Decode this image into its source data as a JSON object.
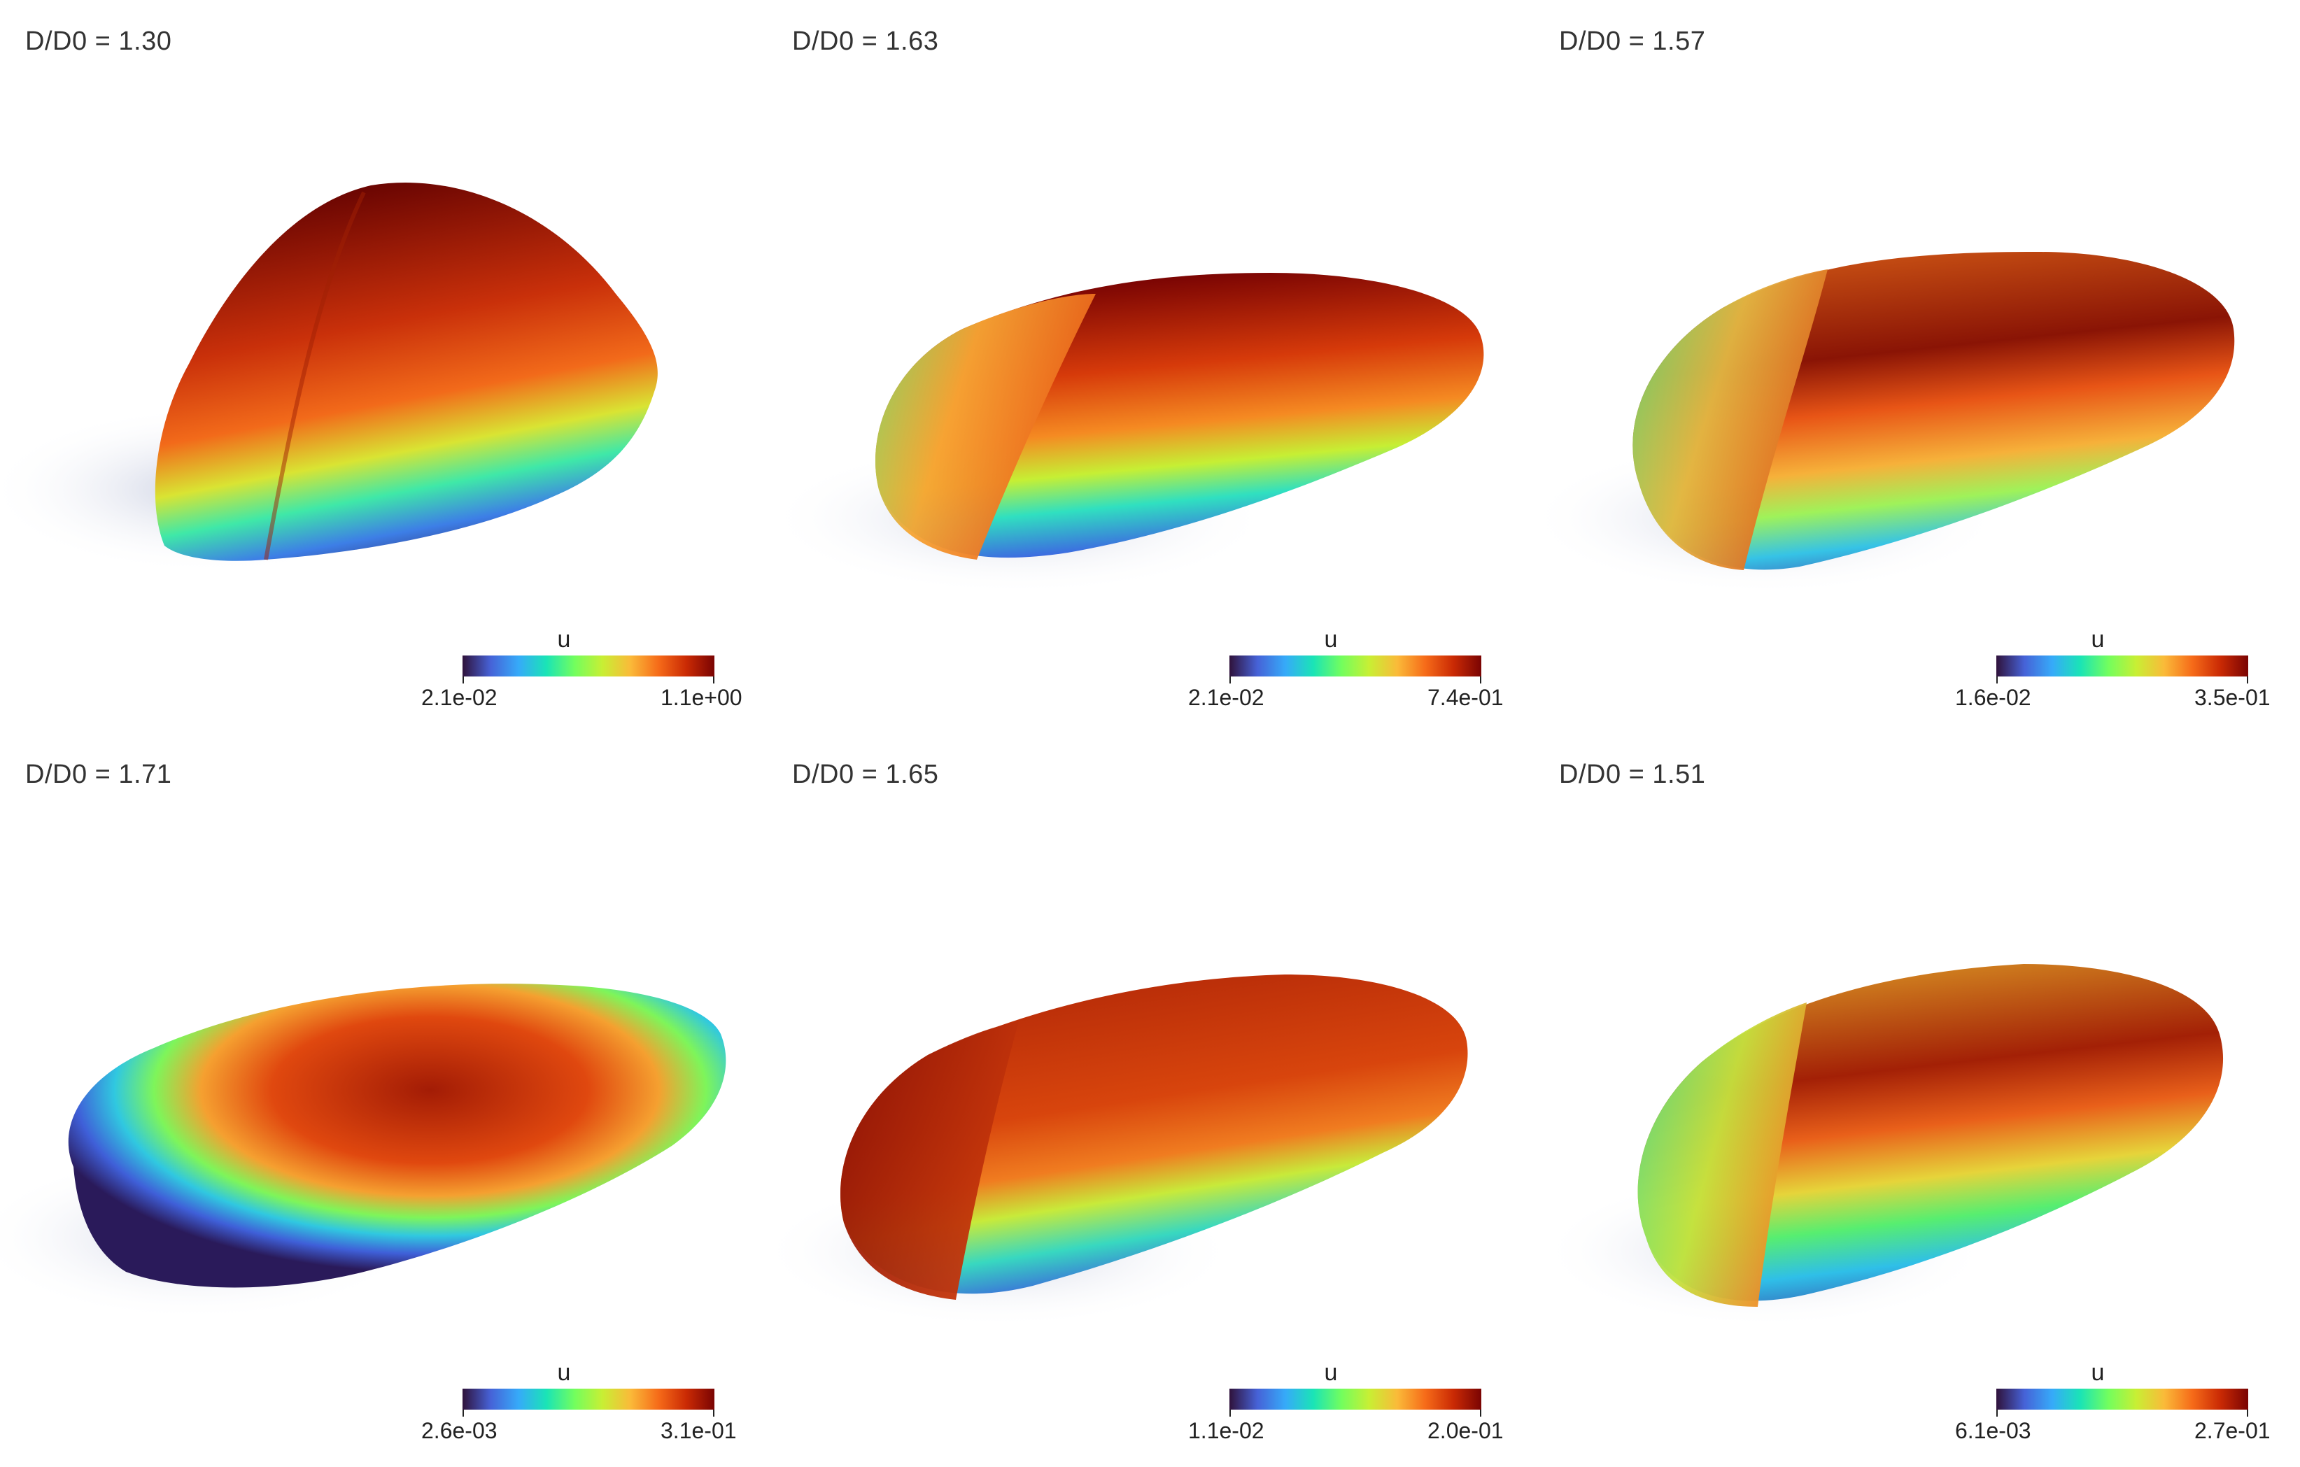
{
  "panels": [
    {
      "title": "D/D0 = 1.30",
      "colorbar": {
        "label": "u",
        "min": "2.1e-02",
        "max": "1.1e+00"
      }
    },
    {
      "title": "D/D0 = 1.63",
      "colorbar": {
        "label": "u",
        "min": "2.1e-02",
        "max": "7.4e-01"
      }
    },
    {
      "title": "D/D0 = 1.57",
      "colorbar": {
        "label": "u",
        "min": "1.6e-02",
        "max": "3.5e-01"
      }
    },
    {
      "title": "D/D0 = 1.71",
      "colorbar": {
        "label": "u",
        "min": "2.6e-03",
        "max": "3.1e-01"
      }
    },
    {
      "title": "D/D0 = 1.65",
      "colorbar": {
        "label": "u",
        "min": "1.1e-02",
        "max": "2.0e-01"
      }
    },
    {
      "title": "D/D0 = 1.51",
      "colorbar": {
        "label": "u",
        "min": "6.1e-03",
        "max": "2.7e-01"
      }
    }
  ],
  "colormap": [
    "#30123b",
    "#4662d7",
    "#36aaf9",
    "#1ae4b6",
    "#72fe5e",
    "#c8ef34",
    "#faba39",
    "#f66b19",
    "#ca2a04",
    "#7a0403"
  ]
}
